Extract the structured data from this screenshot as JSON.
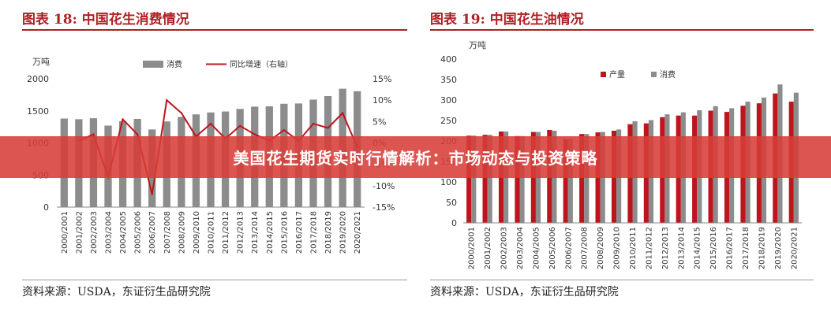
{
  "banner": {
    "title": "美国花生期货实时行情解析：市场动态与投资策略"
  },
  "left_panel": {
    "title": "图表 18:  中国花生消费情况",
    "source": "资料来源：USDA，东证衍生品研究院"
  },
  "right_panel": {
    "title": "图表 19:  中国花生油情况",
    "source": "资料来源：USDA，东证衍生品研究院"
  },
  "colors": {
    "gray_bar": "#8c8c8c",
    "red": "#c0141c",
    "title_red": "#b01f24"
  },
  "chart_data": [
    {
      "type": "bar",
      "unit_label": "万吨",
      "categories": [
        "2000/2001",
        "2001/2002",
        "2002/2003",
        "2003/2004",
        "2004/2005",
        "2005/2006",
        "2006/2007",
        "2007/2008",
        "2008/2009",
        "2009/2010",
        "2010/2011",
        "2011/2012",
        "2012/2013",
        "2013/2014",
        "2014/2015",
        "2015/2016",
        "2016/2017",
        "2017/2018",
        "2018/2019",
        "2019/2020",
        "2020/2021"
      ],
      "ylim": [
        0,
        2000
      ],
      "y_ticks": [
        "0",
        "500",
        "1000",
        "1500",
        "2000"
      ],
      "y2lim": [
        -15,
        15
      ],
      "y2_ticks": [
        "-15%",
        "-10%",
        "-5%",
        "0%",
        "5%",
        "10%",
        "15%"
      ],
      "legend_placement": "top",
      "series": [
        {
          "name": "消费",
          "type": "bar",
          "axis": "left",
          "values": [
            1380,
            1370,
            1385,
            1270,
            1340,
            1375,
            1210,
            1335,
            1405,
            1445,
            1475,
            1490,
            1530,
            1565,
            1570,
            1610,
            1615,
            1675,
            1730,
            1845,
            1805
          ]
        },
        {
          "name": "同比增速（右轴）",
          "type": "line",
          "axis": "right",
          "values": [
            null,
            0.5,
            2.0,
            -8.0,
            5.5,
            2.0,
            -12.0,
            10.0,
            7.0,
            1.5,
            4.5,
            1.0,
            4.0,
            2.0,
            0.5,
            3.0,
            0.5,
            4.5,
            3.5,
            7.0,
            -1.0
          ]
        }
      ]
    },
    {
      "type": "bar",
      "unit_label": "万吨",
      "categories": [
        "2000/2001",
        "2001/2002",
        "2002/2003",
        "2003/2004",
        "2004/2005",
        "2005/2006",
        "2006/2007",
        "2007/2008",
        "2008/2009",
        "2009/2010",
        "2010/2011",
        "2011/2012",
        "2012/2013",
        "2013/2014",
        "2014/2015",
        "2015/2016",
        "2016/2017",
        "2017/2018",
        "2018/2019",
        "2019/2020",
        "2020/2021"
      ],
      "ylim": [
        0,
        400
      ],
      "y_ticks": [
        "0",
        "50",
        "100",
        "150",
        "200",
        "250",
        "300",
        "350",
        "400"
      ],
      "legend_placement": "top",
      "series": [
        {
          "name": "产量",
          "values": [
            213,
            215,
            223,
            212,
            222,
            227,
            205,
            217,
            221,
            225,
            241,
            243,
            258,
            262,
            262,
            274,
            271,
            286,
            292,
            316,
            296
          ]
        },
        {
          "name": "消费",
          "values": [
            213,
            215,
            223,
            212,
            222,
            225,
            205,
            217,
            222,
            228,
            248,
            251,
            265,
            270,
            275,
            285,
            280,
            296,
            306,
            338,
            318
          ]
        }
      ]
    }
  ]
}
